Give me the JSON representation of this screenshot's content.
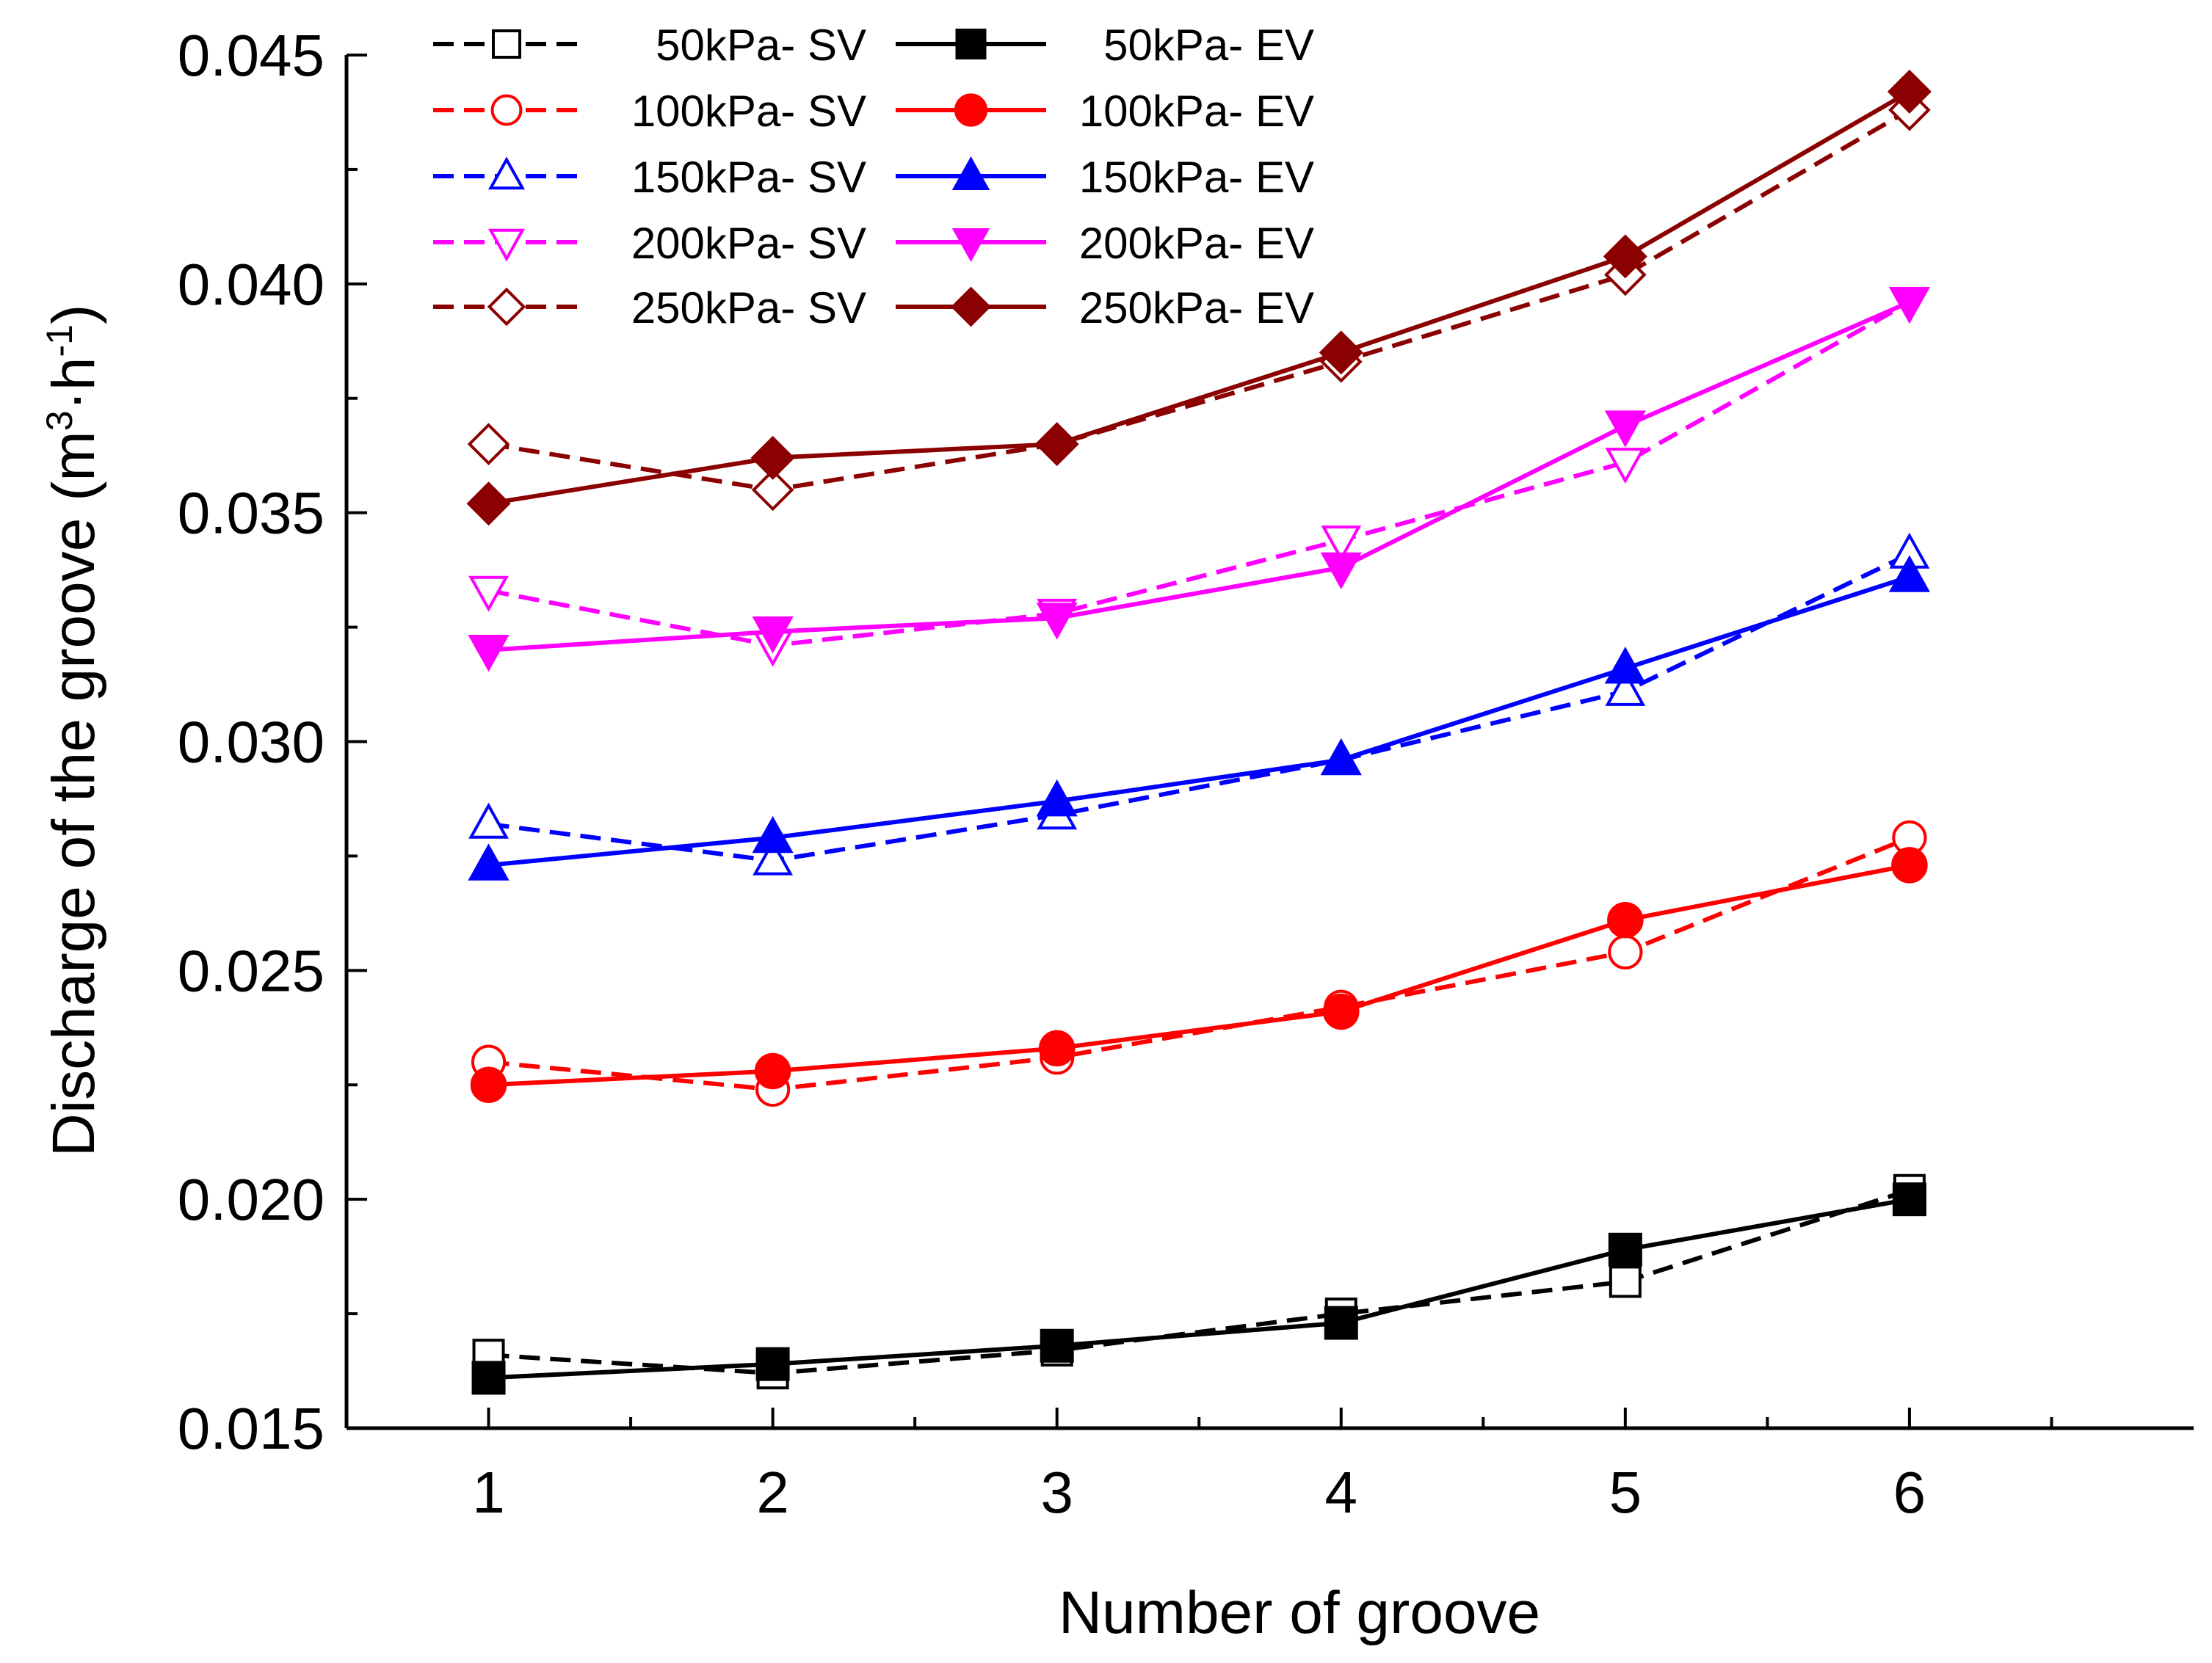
{
  "chart_data": {
    "type": "line",
    "title": "",
    "xlabel": "Number of groove",
    "ylabel": {
      "main": "Discharge of the groove (m",
      "sup1": "3",
      "dot": "·h",
      "sup2": "-1",
      "close": ")"
    },
    "x": [
      1,
      2,
      3,
      4,
      5,
      6
    ],
    "x_tick_labels": [
      "1",
      "2",
      "3",
      "4",
      "5",
      "6"
    ],
    "xlim": [
      0.5,
      7.0
    ],
    "ylim": [
      0.015,
      0.045
    ],
    "y_tick_values": [
      0.015,
      0.02,
      0.025,
      0.03,
      0.035,
      0.04,
      0.045
    ],
    "y_tick_labels": [
      "0.015",
      "0.020",
      "0.025",
      "0.030",
      "0.035",
      "0.040",
      "0.045"
    ],
    "grid": false,
    "legend_position": "top-left",
    "series": [
      {
        "name": "50kPa- SV",
        "color": "#000000",
        "dash": true,
        "marker": "square",
        "filled": false,
        "values": [
          0.0166,
          0.0162,
          0.0167,
          0.0175,
          0.0182,
          0.0202
        ]
      },
      {
        "name": "100kPa- SV",
        "color": "#ff0000",
        "dash": true,
        "marker": "circle",
        "filled": false,
        "values": [
          0.023,
          0.0224,
          0.0231,
          0.0242,
          0.0254,
          0.0279
        ]
      },
      {
        "name": "150kPa- SV",
        "color": "#0000ff",
        "dash": true,
        "marker": "triangle-up",
        "filled": false,
        "values": [
          0.0282,
          0.0274,
          0.0284,
          0.0296,
          0.0311,
          0.0341
        ]
      },
      {
        "name": "200kPa- SV",
        "color": "#ff00ff",
        "dash": true,
        "marker": "triangle-down",
        "filled": false,
        "values": [
          0.0333,
          0.0321,
          0.0328,
          0.0344,
          0.0361,
          0.0396
        ]
      },
      {
        "name": "250kPa- SV",
        "color": "#8b0000",
        "dash": true,
        "marker": "diamond",
        "filled": false,
        "values": [
          0.0365,
          0.0355,
          0.0365,
          0.0383,
          0.0402,
          0.0438
        ]
      },
      {
        "name": "50kPa- EV",
        "color": "#000000",
        "dash": false,
        "marker": "square",
        "filled": true,
        "values": [
          0.0161,
          0.0164,
          0.0168,
          0.0173,
          0.0189,
          0.02
        ]
      },
      {
        "name": "100kPa- EV",
        "color": "#ff0000",
        "dash": false,
        "marker": "circle",
        "filled": true,
        "values": [
          0.0225,
          0.0228,
          0.0233,
          0.0241,
          0.0261,
          0.0273
        ]
      },
      {
        "name": "150kPa- EV",
        "color": "#0000ff",
        "dash": false,
        "marker": "triangle-up",
        "filled": true,
        "values": [
          0.0273,
          0.0279,
          0.0287,
          0.0296,
          0.0316,
          0.0336
        ]
      },
      {
        "name": "200kPa- EV",
        "color": "#ff00ff",
        "dash": false,
        "marker": "triangle-down",
        "filled": true,
        "values": [
          0.032,
          0.0324,
          0.0327,
          0.0338,
          0.0369,
          0.0396
        ]
      },
      {
        "name": "250kPa- EV",
        "color": "#8b0000",
        "dash": false,
        "marker": "diamond",
        "filled": true,
        "values": [
          0.0352,
          0.0362,
          0.0365,
          0.0385,
          0.0406,
          0.0442
        ]
      }
    ]
  }
}
